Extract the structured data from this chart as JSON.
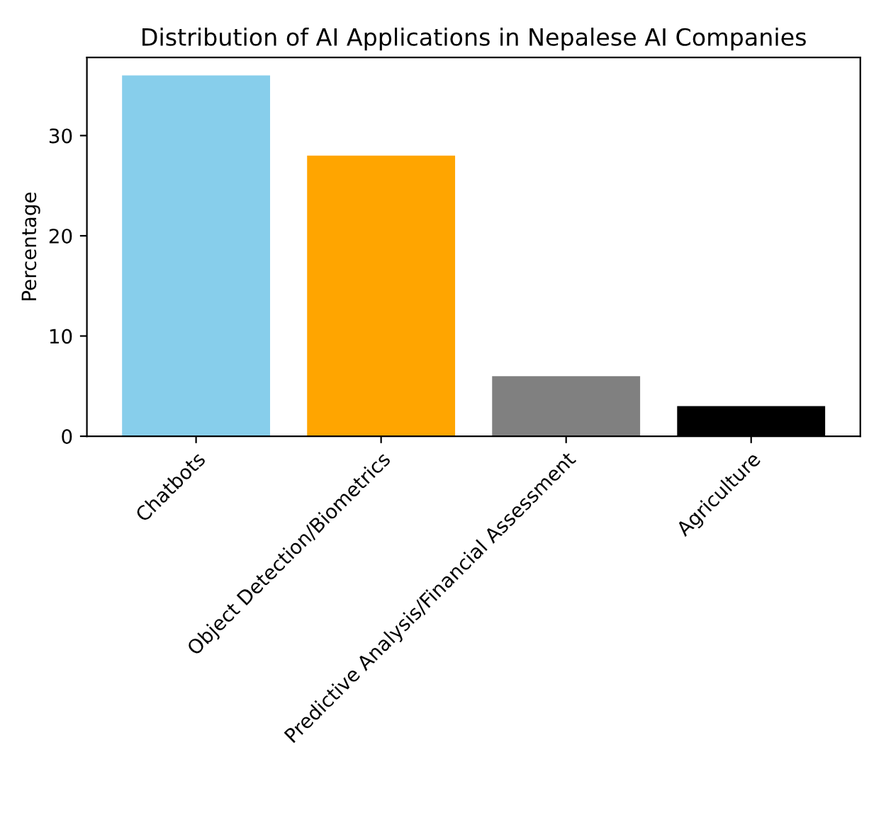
{
  "chart_data": {
    "type": "bar",
    "title": "Distribution of AI Applications in Nepalese AI Companies",
    "ylabel": "Percentage",
    "categories": [
      "Chatbots",
      "Object Detection/Biometrics",
      "Predictive Analysis/Financial Assessment",
      "Agriculture"
    ],
    "values": [
      36,
      28,
      6,
      3
    ],
    "colors": [
      "#87ceeb",
      "#ffa500",
      "#808080",
      "#000000"
    ],
    "ylim": [
      0,
      37.8
    ],
    "yticks": [
      0,
      10,
      20,
      30
    ],
    "grid": false
  }
}
